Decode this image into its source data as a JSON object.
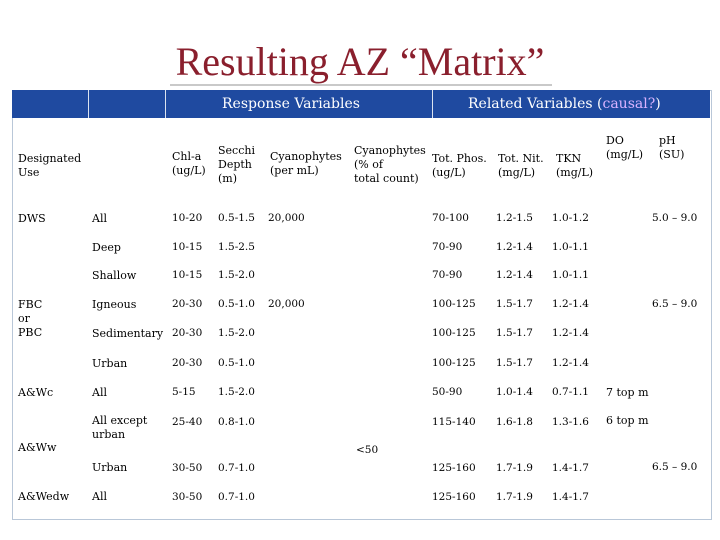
{
  "title": "Resulting AZ “Matrix”",
  "header": {
    "response_variables": "Response Variables",
    "related_variables_prefix": "Related Variables (",
    "related_variables_causal": "causal?",
    "related_variables_suffix": ")"
  },
  "columns": {
    "designated_use": [
      "Designated",
      "Use"
    ],
    "chla": [
      "Chl-a",
      "(ug/L)"
    ],
    "secchi": [
      "Secchi",
      "Depth",
      "(m)"
    ],
    "cyano_count": [
      "Cyanophytes",
      "(per mL)"
    ],
    "cyano_pct": [
      "Cyanophytes",
      "(% of",
      "total count)"
    ],
    "tot_phos": [
      "Tot. Phos.",
      "(ug/L)"
    ],
    "tot_nit": [
      "Tot. Nit.",
      "(mg/L)"
    ],
    "tkn": [
      "TKN",
      "(mg/L)"
    ],
    "do": [
      "DO",
      "(mg/L)"
    ],
    "ph": [
      "pH",
      "(SU)"
    ]
  },
  "uses": {
    "dws": "DWS",
    "fbc": [
      "FBC",
      "or",
      "PBC"
    ],
    "awc": "A&Wc",
    "aww": "A&Ww",
    "awedw": "A&Wedw"
  },
  "rows": [
    {
      "sub": [
        "All"
      ],
      "chla": "10-20",
      "secchi": "0.5-1.5",
      "tp": "70-100",
      "tn": "1.2-1.5",
      "tkn": "1.0-1.2"
    },
    {
      "sub": [
        "Deep"
      ],
      "chla": "10-15",
      "secchi": "1.5-2.5",
      "tp": "70-90",
      "tn": "1.2-1.4",
      "tkn": "1.0-1.1"
    },
    {
      "sub": [
        "Shallow"
      ],
      "chla": "10-15",
      "secchi": "1.5-2.0",
      "tp": "70-90",
      "tn": "1.2-1.4",
      "tkn": "1.0-1.1"
    },
    {
      "sub": [
        "Igneous"
      ],
      "chla": "20-30",
      "secchi": "0.5-1.0",
      "tp": "100-125",
      "tn": "1.5-1.7",
      "tkn": "1.2-1.4"
    },
    {
      "sub": [
        "Sedimentary"
      ],
      "chla": "20-30",
      "secchi": "1.5-2.0",
      "tp": "100-125",
      "tn": "1.5-1.7",
      "tkn": "1.2-1.4"
    },
    {
      "sub": [
        "Urban"
      ],
      "chla": "20-30",
      "secchi": "0.5-1.0",
      "tp": "100-125",
      "tn": "1.5-1.7",
      "tkn": "1.2-1.4"
    },
    {
      "sub": [
        "All"
      ],
      "chla": "5-15",
      "secchi": "1.5-2.0",
      "tp": "50-90",
      "tn": "1.0-1.4",
      "tkn": "0.7-1.1",
      "do": "7 top m"
    },
    {
      "sub": [
        "All except",
        "urban"
      ],
      "chla": "25-40",
      "secchi": "0.8-1.0",
      "tp": "115-140",
      "tn": "1.6-1.8",
      "tkn": "1.3-1.6",
      "do": "6 top m"
    },
    {
      "sub": [
        "Urban"
      ],
      "chla": "30-50",
      "secchi": "0.7-1.0",
      "tp": "125-160",
      "tn": "1.7-1.9",
      "tkn": "1.4-1.7"
    },
    {
      "sub": [
        "All"
      ],
      "chla": "30-50",
      "secchi": "0.7-1.0",
      "tp": "125-160",
      "tn": "1.7-1.9",
      "tkn": "1.4-1.7"
    }
  ],
  "cyano_count_values": [
    "20,000",
    "20,000"
  ],
  "cyano_pct_value": "<50",
  "ph_values": [
    "5.0 – 9.0",
    "6.5 – 9.0",
    "6.5 – 9.0"
  ]
}
